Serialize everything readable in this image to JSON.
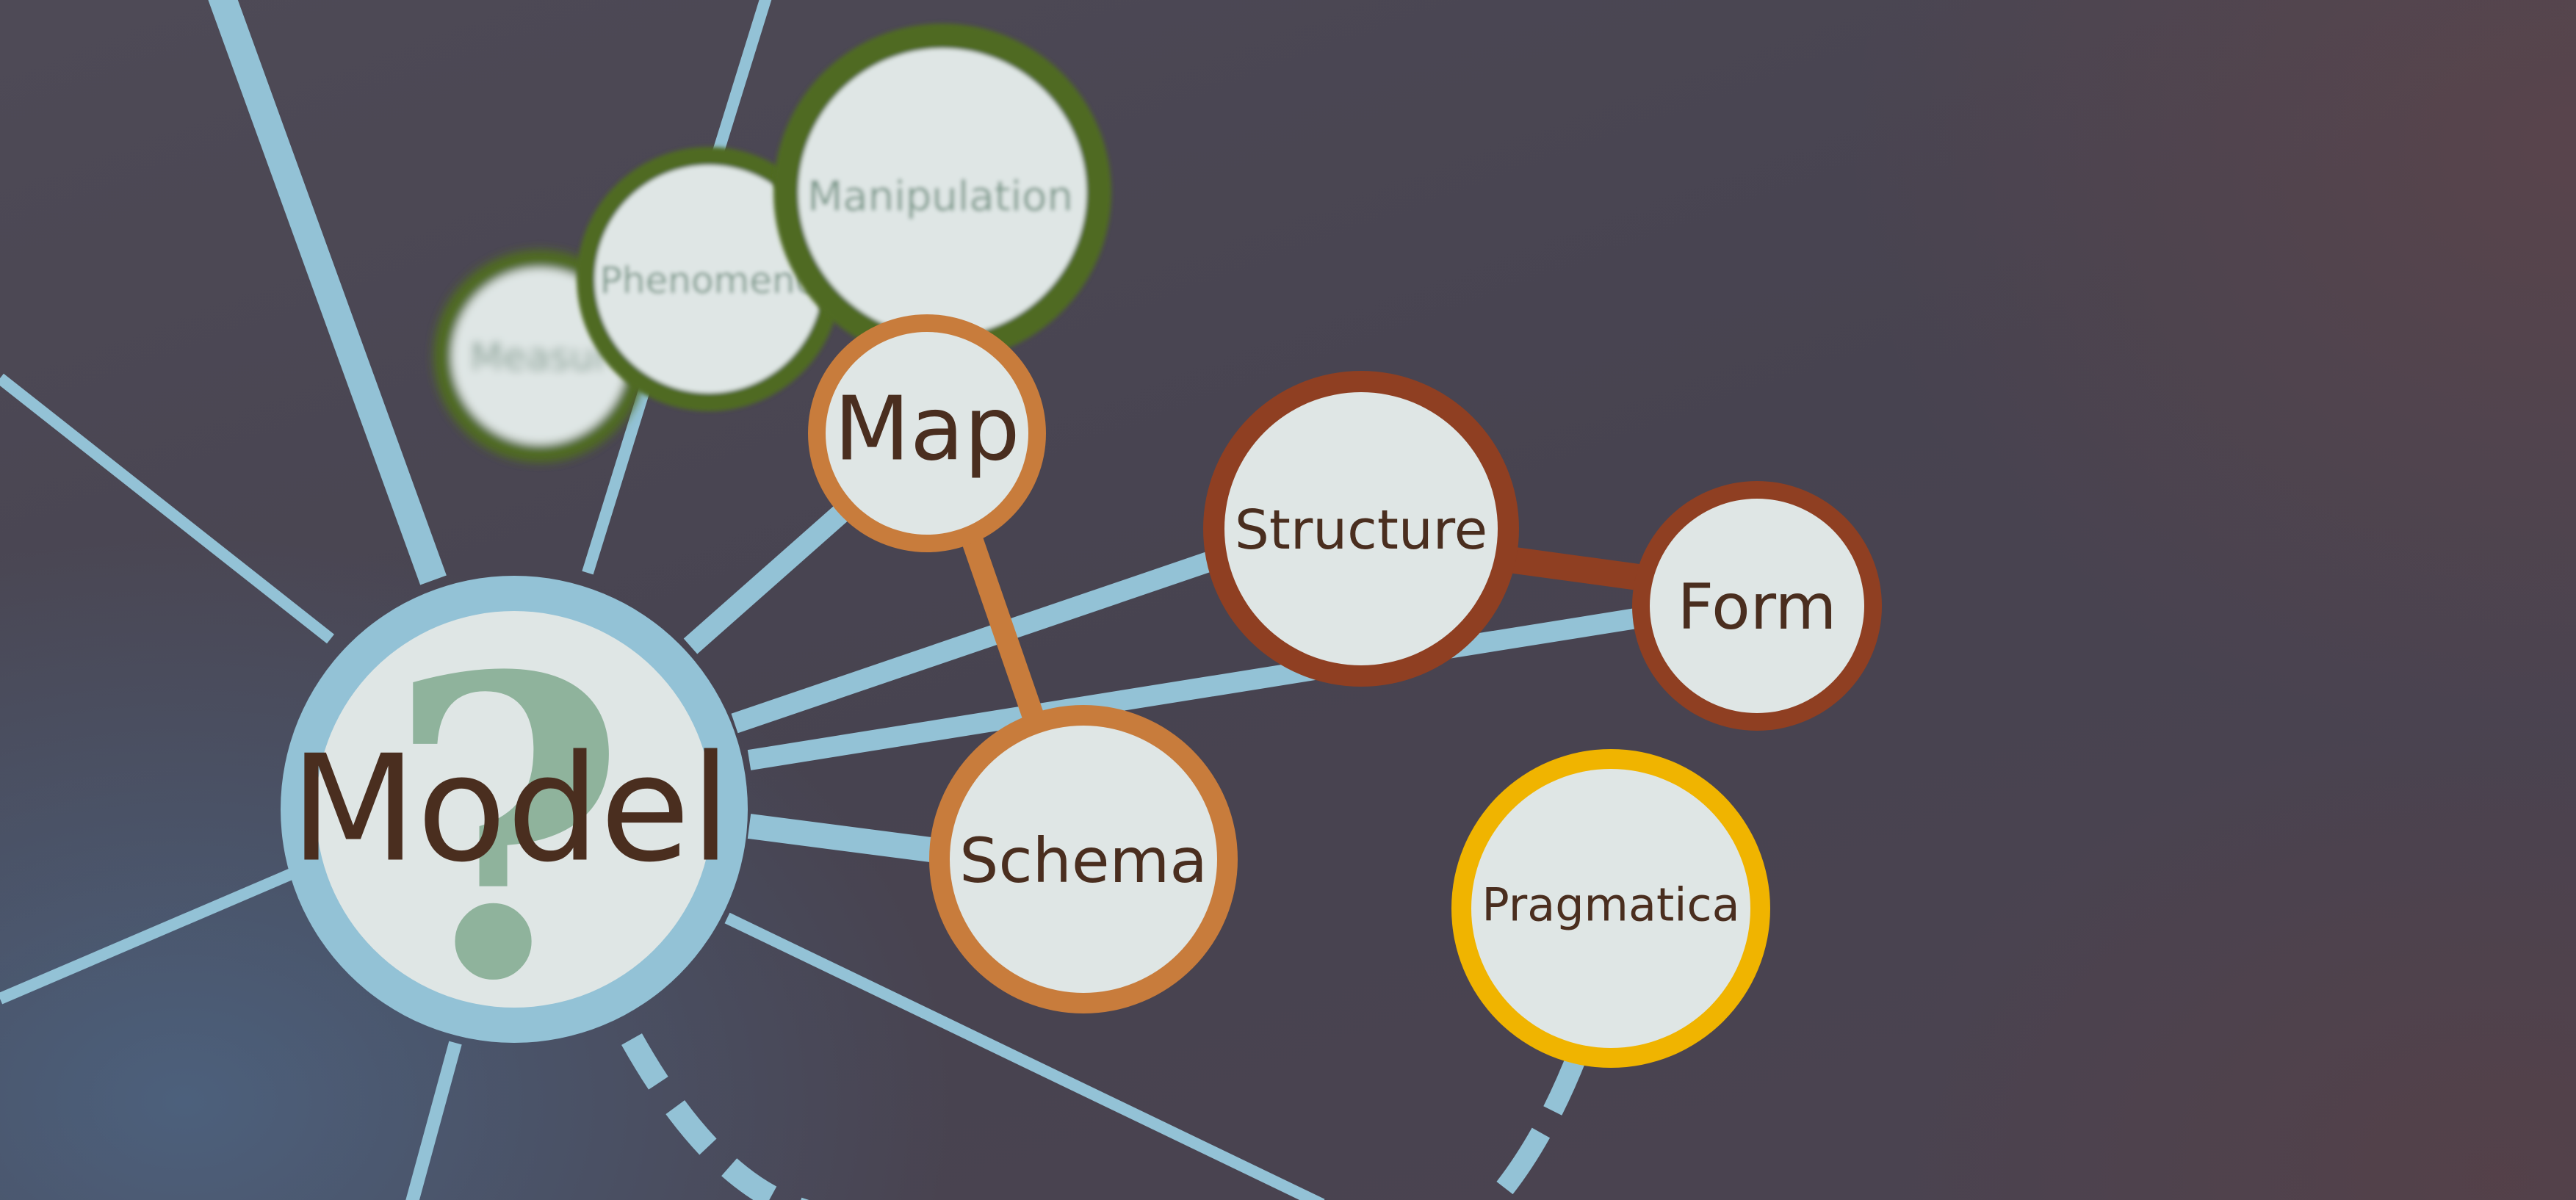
{
  "diagram": {
    "nodes": {
      "model": {
        "label": "Model",
        "symbol": "?"
      },
      "measurement": {
        "label": "Measur"
      },
      "phenomenon": {
        "label": "Phenomeno"
      },
      "manipulation": {
        "label": "Manipulation"
      },
      "map": {
        "label": "Map"
      },
      "structure": {
        "label": "Structure"
      },
      "form": {
        "label": "Form"
      },
      "schema": {
        "label": "Schema"
      },
      "pragmatica": {
        "label": "Pragmatica"
      }
    },
    "colors": {
      "connector": "#93c2d6",
      "node_fill": "#dfe6e5",
      "green_ring": "#4f6a24",
      "orange_ring": "#c87c3c",
      "rust_ring": "#8f3f22",
      "yellow_ring": "#f0b400",
      "model_ring": "#93c2d6",
      "text": "#4a2e1f",
      "question_mark": "#8fb39c"
    }
  }
}
